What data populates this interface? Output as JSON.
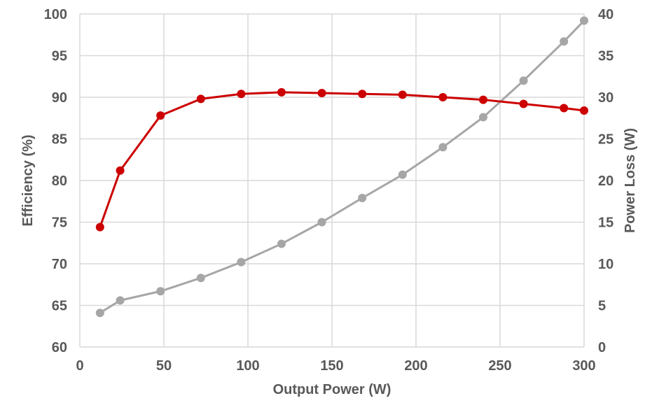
{
  "chart_data": {
    "type": "line",
    "title": "",
    "xlabel": "Output Power (W)",
    "ylabel": "Efficiency (%)",
    "y2label": "Power Loss (W)",
    "xlim": [
      0,
      300
    ],
    "ylim": [
      60,
      100
    ],
    "y2lim": [
      0,
      40
    ],
    "x_ticks": [
      "0",
      "50",
      "100",
      "150",
      "200",
      "250",
      "300"
    ],
    "y_ticks": [
      "60",
      "65",
      "70",
      "75",
      "80",
      "85",
      "90",
      "95",
      "100"
    ],
    "y2_ticks": [
      "0",
      "5",
      "10",
      "15",
      "20",
      "25",
      "30",
      "35",
      "40"
    ],
    "grid": true,
    "legend": "none",
    "series": [
      {
        "axis": "left",
        "color": "#cc0000",
        "x": [
          12,
          24,
          48,
          72,
          96,
          120,
          144,
          168,
          192,
          216,
          240,
          264,
          288,
          300
        ],
        "values": [
          74.4,
          81.2,
          87.8,
          89.8,
          90.4,
          90.6,
          90.5,
          90.4,
          90.3,
          90.0,
          89.7,
          89.2,
          88.7,
          88.4
        ]
      },
      {
        "axis": "right",
        "color": "#a6a6a6",
        "x": [
          12,
          24,
          48,
          72,
          96,
          120,
          144,
          168,
          192,
          216,
          240,
          264,
          288,
          300
        ],
        "values": [
          4.1,
          5.6,
          6.7,
          8.3,
          10.2,
          12.4,
          15.0,
          17.9,
          20.7,
          24.0,
          27.6,
          32.0,
          36.7,
          39.2
        ]
      }
    ]
  }
}
